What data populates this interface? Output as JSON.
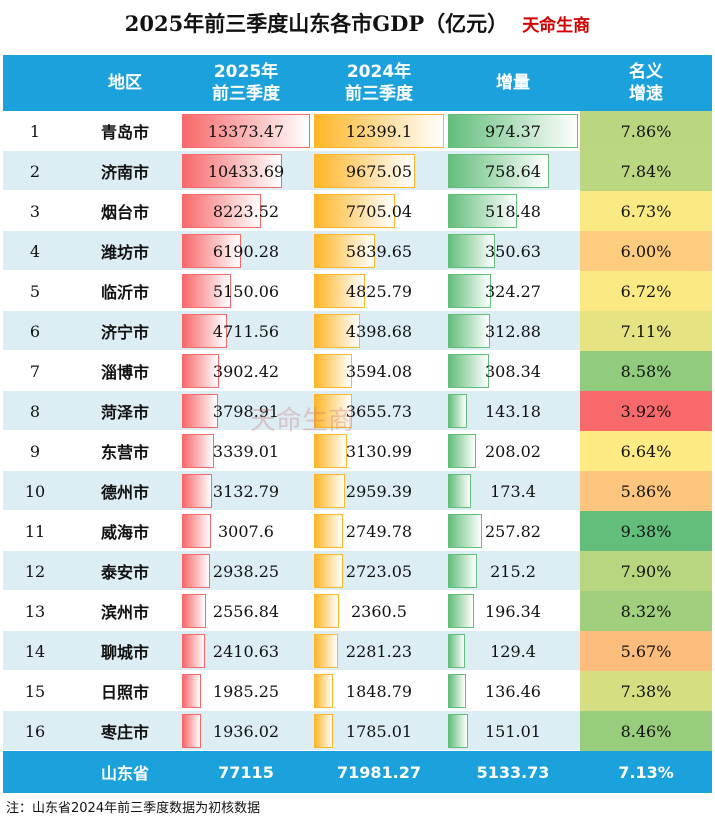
{
  "header": {
    "title": "2025年前三季度山东各市GDP（亿元）",
    "tag": "天命生商"
  },
  "watermark": "天命生商",
  "table": {
    "columns": [
      [
        "地区"
      ],
      [
        "2025年",
        "前三季度"
      ],
      [
        "2024年",
        "前三季度"
      ],
      [
        "增量"
      ],
      [
        "名义",
        "增速"
      ]
    ],
    "rows": [
      [
        "1",
        "青岛市",
        "13373.47",
        "12399.1",
        "974.37",
        "7.86%"
      ],
      [
        "2",
        "济南市",
        "10433.69",
        "9675.05",
        "758.64",
        "7.84%"
      ],
      [
        "3",
        "烟台市",
        "8223.52",
        "7705.04",
        "518.48",
        "6.73%"
      ],
      [
        "4",
        "潍坊市",
        "6190.28",
        "5839.65",
        "350.63",
        "6.00%"
      ],
      [
        "5",
        "临沂市",
        "5150.06",
        "4825.79",
        "324.27",
        "6.72%"
      ],
      [
        "6",
        "济宁市",
        "4711.56",
        "4398.68",
        "312.88",
        "7.11%"
      ],
      [
        "7",
        "淄博市",
        "3902.42",
        "3594.08",
        "308.34",
        "8.58%"
      ],
      [
        "8",
        "菏泽市",
        "3798.91",
        "3655.73",
        "143.18",
        "3.92%"
      ],
      [
        "9",
        "东营市",
        "3339.01",
        "3130.99",
        "208.02",
        "6.64%"
      ],
      [
        "10",
        "德州市",
        "3132.79",
        "2959.39",
        "173.4",
        "5.86%"
      ],
      [
        "11",
        "威海市",
        "3007.6",
        "2749.78",
        "257.82",
        "9.38%"
      ],
      [
        "12",
        "泰安市",
        "2938.25",
        "2723.05",
        "215.2",
        "7.90%"
      ],
      [
        "13",
        "滨州市",
        "2556.84",
        "2360.5",
        "196.34",
        "8.32%"
      ],
      [
        "14",
        "聊城市",
        "2410.63",
        "2281.23",
        "129.4",
        "5.67%"
      ],
      [
        "15",
        "日照市",
        "1985.25",
        "1848.79",
        "136.46",
        "7.38%"
      ],
      [
        "16",
        "枣庄市",
        "1936.02",
        "1785.01",
        "151.01",
        "8.46%"
      ]
    ],
    "total": [
      "山东省",
      "77115",
      "71981.27",
      "5133.73",
      "7.13%"
    ]
  },
  "footnote": "注：山东省2024年前三季度数据为初核数据"
}
